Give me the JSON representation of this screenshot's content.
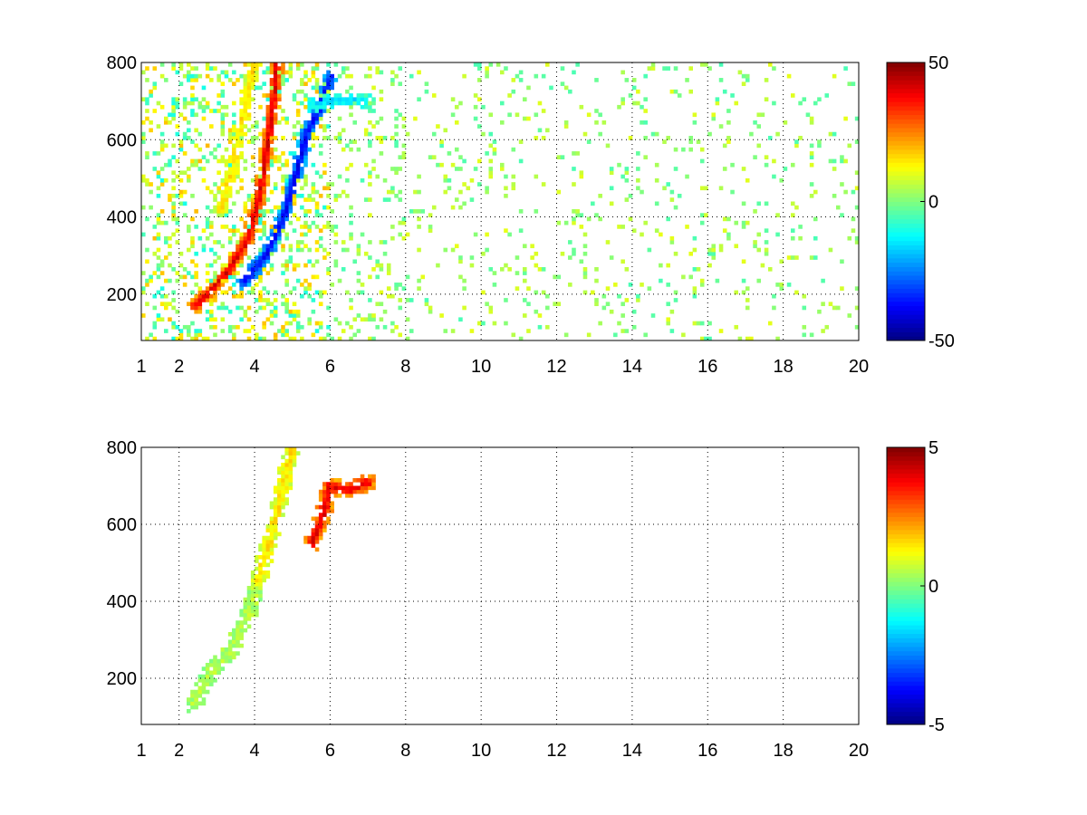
{
  "chart_data": [
    {
      "type": "heatmap",
      "title": "",
      "xlabel": "",
      "ylabel": "",
      "xlim": [
        1,
        20
      ],
      "ylim": [
        80,
        800
      ],
      "x_ticks": [
        1,
        2,
        4,
        6,
        8,
        10,
        12,
        14,
        16,
        18,
        20
      ],
      "y_ticks": [
        200,
        400,
        600,
        800
      ],
      "grid": true,
      "colormap": "jet",
      "colorbar": {
        "range": [
          -50,
          50
        ],
        "ticks": [
          -50,
          0,
          50
        ]
      },
      "features": [
        {
          "name_hint": "positive ridge (red)",
          "value": 40,
          "path": [
            [
              2.4,
              170
            ],
            [
              2.8,
              205
            ],
            [
              3.3,
              260
            ],
            [
              3.8,
              340
            ],
            [
              4.1,
              440
            ],
            [
              4.3,
              560
            ],
            [
              4.5,
              700
            ],
            [
              4.6,
              800
            ]
          ]
        },
        {
          "name_hint": "negative ridge (blue)",
          "value": -38,
          "path": [
            [
              3.7,
              230
            ],
            [
              4.3,
              300
            ],
            [
              4.8,
              410
            ],
            [
              5.1,
              510
            ],
            [
              5.4,
              620
            ],
            [
              5.8,
              700
            ],
            [
              6.0,
              760
            ]
          ]
        },
        {
          "name_hint": "weak positive branch",
          "value": 15,
          "path": [
            [
              3.1,
              420
            ],
            [
              3.4,
              520
            ],
            [
              3.6,
              620
            ],
            [
              3.8,
              720
            ],
            [
              4.0,
              800
            ]
          ]
        },
        {
          "name_hint": "negative tail",
          "value": -15,
          "path": [
            [
              5.5,
              690
            ],
            [
              6.2,
              705
            ],
            [
              7.0,
              700
            ]
          ]
        }
      ],
      "scatter_density": "dense for x < 6, sparse light green/cyan speckle for x >= 8"
    },
    {
      "type": "heatmap",
      "title": "",
      "xlabel": "",
      "ylabel": "",
      "xlim": [
        1,
        20
      ],
      "ylim": [
        80,
        800
      ],
      "x_ticks": [
        1,
        2,
        4,
        6,
        8,
        10,
        12,
        14,
        16,
        18,
        20
      ],
      "y_ticks": [
        200,
        400,
        600,
        800
      ],
      "grid": true,
      "colormap": "jet",
      "colorbar": {
        "range": [
          -5,
          5
        ],
        "ticks": [
          -5,
          0,
          5
        ]
      },
      "features": [
        {
          "name_hint": "low branch",
          "value": 0.5,
          "path": [
            [
              2.4,
              130
            ],
            [
              2.8,
              210
            ],
            [
              3.4,
              280
            ],
            [
              3.8,
              360
            ],
            [
              4.1,
              440
            ]
          ]
        },
        {
          "name_hint": "upper band",
          "value": 1.5,
          "path": [
            [
              4.1,
              450
            ],
            [
              4.4,
              560
            ],
            [
              4.7,
              680
            ],
            [
              5.0,
              800
            ]
          ]
        },
        {
          "name_hint": "hot spot",
          "value": 4,
          "path": [
            [
              5.5,
              550
            ],
            [
              5.8,
              620
            ],
            [
              6.0,
              700
            ],
            [
              6.5,
              690
            ],
            [
              7.0,
              710
            ]
          ]
        }
      ]
    }
  ]
}
